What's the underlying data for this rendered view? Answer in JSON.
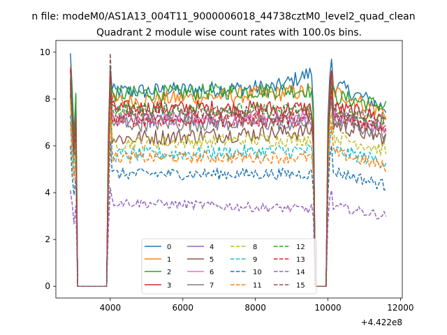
{
  "figure": {
    "suptitle": "n file: modeM0/AS1A13_004T11_9000006018_44738cztM0_level2_quad_clean",
    "title": "Quadrant 2 module wise count rates with 100.0s bins."
  },
  "chart_data": {
    "type": "line",
    "title": "Quadrant 2 module wise count rates with 100.0s bins.",
    "xlabel": "",
    "ylabel": "",
    "x_offset_label": "+4.422e8",
    "xlim": [
      2500,
      12050
    ],
    "ylim": [
      -0.5,
      10.5
    ],
    "x_ticks": [
      4000,
      6000,
      8000,
      10000,
      12000
    ],
    "y_ticks": [
      0,
      2,
      4,
      6,
      8,
      10
    ],
    "grid": false,
    "legend": {
      "placement": "lower-center",
      "ncol": 4
    },
    "time_grid": {
      "start": 2900,
      "step": 50,
      "end": 11600
    },
    "gaps": [
      [
        3100,
        3900
      ],
      [
        9650,
        9950
      ]
    ],
    "series": [
      {
        "name": "0",
        "color": "#1f77b4",
        "style": "solid",
        "level": 8.4,
        "peak_start": 9.95,
        "peak_mid": 9.4,
        "peak_end": 9.7,
        "noise": 0.35,
        "trend": [
          [
            4000,
            8.3
          ],
          [
            8600,
            8.5
          ],
          [
            9500,
            9.1
          ],
          [
            10200,
            8.6
          ],
          [
            11600,
            7.6
          ]
        ]
      },
      {
        "name": "1",
        "color": "#ff7f0e",
        "style": "solid",
        "level": 7.9,
        "peak_start": 9.4,
        "peak_mid": 9.0,
        "peak_end": 9.2,
        "noise": 0.35,
        "trend": [
          [
            4000,
            7.9
          ],
          [
            9400,
            8.3
          ],
          [
            10200,
            8.3
          ],
          [
            11600,
            7.4
          ]
        ]
      },
      {
        "name": "2",
        "color": "#2ca02c",
        "style": "solid",
        "level": 8.0,
        "peak_start": 9.2,
        "peak_mid": 8.8,
        "peak_end": 8.7,
        "noise": 0.35,
        "trend": [
          [
            4000,
            8.2
          ],
          [
            9400,
            8.4
          ],
          [
            10200,
            8.1
          ],
          [
            11600,
            7.7
          ]
        ]
      },
      {
        "name": "3",
        "color": "#d62728",
        "style": "solid",
        "level": 7.5,
        "peak_start": 9.3,
        "peak_mid": 9.2,
        "peak_end": 9.2,
        "noise": 0.35,
        "trend": [
          [
            4000,
            7.6
          ],
          [
            9400,
            7.6
          ],
          [
            10200,
            7.6
          ],
          [
            11600,
            7.2
          ]
        ]
      },
      {
        "name": "4",
        "color": "#9467bd",
        "style": "solid",
        "level": 7.0,
        "peak_start": 8.3,
        "peak_mid": 8.3,
        "peak_end": 8.1,
        "noise": 0.3,
        "trend": [
          [
            4000,
            7.1
          ],
          [
            9400,
            7.0
          ],
          [
            10200,
            7.1
          ],
          [
            11600,
            6.8
          ]
        ]
      },
      {
        "name": "5",
        "color": "#8c564b",
        "style": "solid",
        "level": 6.5,
        "peak_start": 8.2,
        "peak_mid": 8.5,
        "peak_end": 8.0,
        "noise": 0.35,
        "trend": [
          [
            4000,
            6.3
          ],
          [
            9400,
            6.6
          ],
          [
            10200,
            6.9
          ],
          [
            11600,
            6.3
          ]
        ]
      },
      {
        "name": "6",
        "color": "#e377c2",
        "style": "solid",
        "level": 7.1,
        "peak_start": 8.7,
        "peak_mid": 8.6,
        "peak_end": 8.4,
        "noise": 0.3,
        "trend": [
          [
            4000,
            7.2
          ],
          [
            9400,
            7.2
          ],
          [
            10200,
            7.3
          ],
          [
            11600,
            6.7
          ]
        ]
      },
      {
        "name": "7",
        "color": "#7f7f7f",
        "style": "solid",
        "level": 6.9,
        "peak_start": 8.5,
        "peak_mid": 8.3,
        "peak_end": 8.0,
        "noise": 0.4,
        "trend": [
          [
            4000,
            7.0
          ],
          [
            9400,
            7.0
          ],
          [
            10200,
            7.2
          ],
          [
            11600,
            6.5
          ]
        ]
      },
      {
        "name": "8",
        "color": "#bcbd22",
        "style": "dashed",
        "level": 6.0,
        "peak_start": 8.0,
        "peak_mid": 7.8,
        "peak_end": 7.4,
        "noise": 0.3,
        "trend": [
          [
            4000,
            6.1
          ],
          [
            9400,
            6.3
          ],
          [
            10200,
            6.4
          ],
          [
            11600,
            5.8
          ]
        ]
      },
      {
        "name": "9",
        "color": "#17becf",
        "style": "dashed",
        "level": 5.4,
        "peak_start": 7.3,
        "peak_mid": 7.3,
        "peak_end": 6.7,
        "noise": 0.3,
        "trend": [
          [
            4000,
            5.6
          ],
          [
            9400,
            5.8
          ],
          [
            10200,
            5.8
          ],
          [
            11600,
            5.3
          ]
        ]
      },
      {
        "name": "10",
        "color": "#1f77b4",
        "style": "dashed",
        "level": 4.5,
        "peak_start": 6.0,
        "peak_mid": 6.2,
        "peak_end": 6.0,
        "noise": 0.25,
        "trend": [
          [
            4000,
            4.8
          ],
          [
            9400,
            4.8
          ],
          [
            10200,
            4.9
          ],
          [
            11600,
            4.3
          ]
        ]
      },
      {
        "name": "11",
        "color": "#ff7f0e",
        "style": "dashed",
        "level": 5.3,
        "peak_start": 7.0,
        "peak_mid": 7.4,
        "peak_end": 7.0,
        "noise": 0.25,
        "trend": [
          [
            4000,
            5.5
          ],
          [
            9400,
            5.5
          ],
          [
            10200,
            5.7
          ],
          [
            11600,
            5.1
          ]
        ]
      },
      {
        "name": "12",
        "color": "#2ca02c",
        "style": "dashed",
        "level": 7.3,
        "peak_start": 8.9,
        "peak_mid": 8.6,
        "peak_end": 8.5,
        "noise": 0.3,
        "trend": [
          [
            4000,
            7.6
          ],
          [
            9400,
            7.5
          ],
          [
            10200,
            7.4
          ],
          [
            11600,
            7.0
          ]
        ]
      },
      {
        "name": "13",
        "color": "#d62728",
        "style": "dashed",
        "level": 7.0,
        "peak_start": 8.7,
        "peak_mid": 8.3,
        "peak_end": 8.4,
        "noise": 0.3,
        "trend": [
          [
            4000,
            7.1
          ],
          [
            9400,
            7.1
          ],
          [
            10200,
            7.2
          ],
          [
            11600,
            6.8
          ]
        ]
      },
      {
        "name": "14",
        "color": "#9467bd",
        "style": "dashed",
        "level": 3.2,
        "peak_start": 4.1,
        "peak_mid": 4.2,
        "peak_end": 4.1,
        "noise": 0.2,
        "trend": [
          [
            4000,
            3.6
          ],
          [
            9400,
            3.3
          ],
          [
            10200,
            3.4
          ],
          [
            11600,
            3.0
          ]
        ]
      },
      {
        "name": "15",
        "color": "#8c564b",
        "style": "dashed",
        "level": 7.3,
        "peak_start": 8.8,
        "peak_mid": 9.95,
        "peak_end": 8.9,
        "noise": 0.3,
        "trend": [
          [
            4000,
            7.5
          ],
          [
            9400,
            7.4
          ],
          [
            10200,
            7.6
          ],
          [
            11600,
            7.1
          ]
        ]
      }
    ]
  }
}
